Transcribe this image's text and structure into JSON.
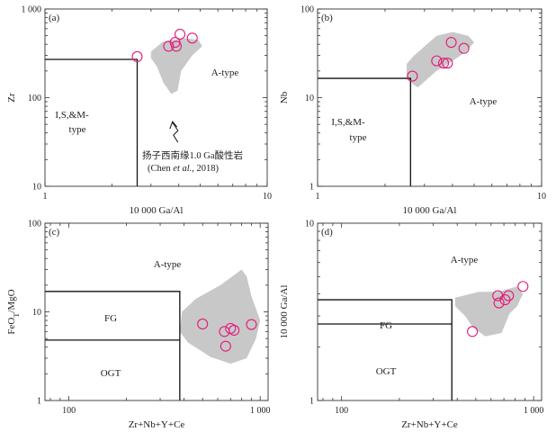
{
  "chart_data": [
    {
      "panel": "(a)",
      "type": "scatter",
      "xscale": "log",
      "yscale": "log",
      "xlim": [
        1,
        10
      ],
      "ylim": [
        10,
        1000
      ],
      "xlabel": "10 000 Ga/Al",
      "ylabel": "Zr",
      "x_ticks": [
        {
          "v": 1,
          "label": "1"
        },
        {
          "v": 10,
          "label": "10"
        }
      ],
      "y_ticks": [
        {
          "v": 10,
          "label": "10"
        },
        {
          "v": 100,
          "label": "100"
        },
        {
          "v": 1000,
          "label": "1 000"
        }
      ],
      "fields": [
        {
          "text": "A-type"
        },
        {
          "text": "I,S,&M-"
        },
        {
          "text": "type"
        }
      ],
      "boundary": [
        [
          1,
          270
        ],
        [
          2.6,
          270
        ],
        [
          2.6,
          10
        ]
      ],
      "region": [
        [
          3.0,
          330
        ],
        [
          3.4,
          430
        ],
        [
          4.2,
          470
        ],
        [
          4.9,
          450
        ],
        [
          5.1,
          380
        ],
        [
          4.6,
          300
        ],
        [
          4.1,
          200
        ],
        [
          3.95,
          120
        ],
        [
          3.7,
          110
        ],
        [
          3.4,
          150
        ],
        [
          3.2,
          220
        ],
        [
          3.0,
          280
        ]
      ],
      "points": [
        {
          "x": 2.6,
          "y": 290
        },
        {
          "x": 3.6,
          "y": 380
        },
        {
          "x": 3.85,
          "y": 420
        },
        {
          "x": 3.9,
          "y": 380
        },
        {
          "x": 4.05,
          "y": 520
        },
        {
          "x": 4.6,
          "y": 470
        }
      ],
      "annotation": {
        "line1": "扬子西南缘1.0 Ga酸性岩",
        "line2_prefix": "(Chen ",
        "line2_italic": "et al.",
        "line2_suffix": ", 2018)"
      },
      "annotation_target": {
        "x": 3.75,
        "y": 50
      }
    },
    {
      "panel": "(b)",
      "type": "scatter",
      "xscale": "log",
      "yscale": "log",
      "xlim": [
        1,
        10
      ],
      "ylim": [
        1,
        100
      ],
      "xlabel": "10 000 Ga/Al",
      "ylabel": "Nb",
      "x_ticks": [
        {
          "v": 1,
          "label": "1"
        },
        {
          "v": 10,
          "label": "10"
        }
      ],
      "y_ticks": [
        {
          "v": 1,
          "label": "1"
        },
        {
          "v": 10,
          "label": "10"
        },
        {
          "v": 100,
          "label": "100"
        }
      ],
      "fields": [
        {
          "text": "A-type"
        },
        {
          "text": "I,S,&M-"
        },
        {
          "text": "type"
        }
      ],
      "boundary": [
        [
          1,
          16.5
        ],
        [
          2.6,
          16.5
        ],
        [
          2.6,
          1
        ]
      ],
      "region": [
        [
          2.9,
          35
        ],
        [
          3.4,
          50
        ],
        [
          4.0,
          55
        ],
        [
          4.7,
          50
        ],
        [
          5.0,
          42
        ],
        [
          4.6,
          33
        ],
        [
          4.1,
          27
        ],
        [
          3.4,
          20
        ],
        [
          2.8,
          13
        ],
        [
          2.5,
          16
        ],
        [
          2.5,
          24
        ],
        [
          2.7,
          30
        ]
      ],
      "points": [
        {
          "x": 2.65,
          "y": 17.5
        },
        {
          "x": 3.4,
          "y": 26
        },
        {
          "x": 3.65,
          "y": 24.5
        },
        {
          "x": 3.8,
          "y": 24.5
        },
        {
          "x": 3.95,
          "y": 42
        },
        {
          "x": 4.5,
          "y": 36
        }
      ]
    },
    {
      "panel": "(c)",
      "type": "scatter",
      "xscale": "log",
      "yscale": "log",
      "xlim": [
        75,
        1100
      ],
      "ylim": [
        1,
        100
      ],
      "xlabel": "Zr+Nb+Y+Ce",
      "ylabel": "FeO",
      "ylabel_sub": "T",
      "ylabel_suffix": "/MgO",
      "x_ticks": [
        {
          "v": 100,
          "label": "100"
        },
        {
          "v": 1000,
          "label": "1 000"
        }
      ],
      "y_ticks": [
        {
          "v": 1,
          "label": "1"
        },
        {
          "v": 10,
          "label": "10"
        },
        {
          "v": 100,
          "label": "100"
        }
      ],
      "fields": [
        {
          "text": "A-type"
        },
        {
          "text": "FG"
        },
        {
          "text": "OGT"
        }
      ],
      "boundary_outer": [
        [
          75,
          17
        ],
        [
          380,
          17
        ],
        [
          380,
          1
        ]
      ],
      "boundary_inner": [
        [
          75,
          4.8
        ],
        [
          380,
          4.8
        ]
      ],
      "region": [
        [
          460,
          14
        ],
        [
          620,
          20
        ],
        [
          800,
          30
        ],
        [
          850,
          25
        ],
        [
          900,
          15
        ],
        [
          1000,
          8
        ],
        [
          950,
          5
        ],
        [
          850,
          3
        ],
        [
          700,
          2.6
        ],
        [
          550,
          3.1
        ],
        [
          420,
          4.5
        ],
        [
          380,
          6
        ],
        [
          390,
          10
        ]
      ],
      "points": [
        {
          "x": 500,
          "y": 7.3
        },
        {
          "x": 650,
          "y": 6
        },
        {
          "x": 660,
          "y": 4.1
        },
        {
          "x": 700,
          "y": 6.5
        },
        {
          "x": 730,
          "y": 6.2
        },
        {
          "x": 900,
          "y": 7.2
        }
      ]
    },
    {
      "panel": "(d)",
      "type": "scatter",
      "xscale": "log",
      "yscale": "log",
      "xlim": [
        75,
        1100
      ],
      "ylim": [
        1,
        10
      ],
      "xlabel": "Zr+Nb+Y+Ce",
      "ylabel": "10 000 Ga/Al",
      "x_ticks": [
        {
          "v": 100,
          "label": "100"
        },
        {
          "v": 1000,
          "label": "1 000"
        }
      ],
      "y_ticks": [
        {
          "v": 1,
          "label": "1"
        },
        {
          "v": 10,
          "label": "10"
        }
      ],
      "fields": [
        {
          "text": "A-type"
        },
        {
          "text": "FG"
        },
        {
          "text": "OGT"
        }
      ],
      "boundary_outer": [
        [
          75,
          3.7
        ],
        [
          375,
          3.7
        ],
        [
          375,
          1
        ]
      ],
      "boundary_inner": [
        [
          75,
          2.7
        ],
        [
          375,
          2.7
        ]
      ],
      "region": [
        [
          390,
          3.8
        ],
        [
          520,
          4.1
        ],
        [
          650,
          4.1
        ],
        [
          820,
          4.4
        ],
        [
          880,
          4.0
        ],
        [
          820,
          3.4
        ],
        [
          750,
          3.1
        ],
        [
          680,
          2.4
        ],
        [
          560,
          2.3
        ],
        [
          480,
          2.6
        ],
        [
          440,
          3.0
        ],
        [
          390,
          3.4
        ]
      ],
      "points": [
        {
          "x": 480,
          "y": 2.45
        },
        {
          "x": 650,
          "y": 3.9
        },
        {
          "x": 660,
          "y": 3.55
        },
        {
          "x": 710,
          "y": 3.7
        },
        {
          "x": 740,
          "y": 3.9
        },
        {
          "x": 880,
          "y": 4.4
        }
      ]
    }
  ],
  "colors": {
    "marker": "#e21a7c",
    "region_fill": "#c8c8c8",
    "boundary": "#111111",
    "axis": "#333333"
  }
}
